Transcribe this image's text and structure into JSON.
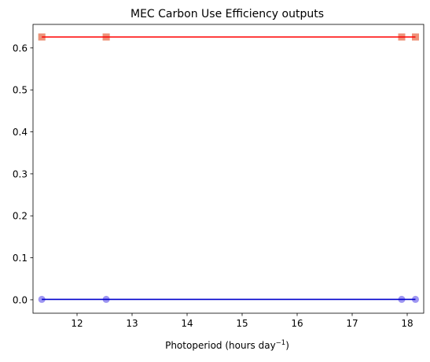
{
  "chart_data": {
    "type": "line",
    "title": "MEC Carbon Use Efficiency outputs",
    "xlabel": "Photoperiod (hours day",
    "xlabel_superscript": "−1",
    "xlabel_suffix": ")",
    "ylabel": "",
    "xlim": [
      11.2,
      18.3
    ],
    "ylim": [
      -0.032,
      0.656
    ],
    "xticks": [
      12,
      13,
      14,
      15,
      16,
      17,
      18
    ],
    "yticks": [
      0.0,
      0.1,
      0.2,
      0.3,
      0.4,
      0.5,
      0.6
    ],
    "xtick_labels": [
      "12",
      "13",
      "14",
      "15",
      "16",
      "17",
      "18"
    ],
    "ytick_labels": [
      "0.0",
      "0.1",
      "0.2",
      "0.3",
      "0.4",
      "0.5",
      "0.6"
    ],
    "grid": false,
    "legend": "none",
    "x": [
      11.36,
      12.53,
      17.9,
      18.15
    ],
    "series": [
      {
        "values": [
          0.626,
          0.626,
          0.626,
          0.626
        ],
        "marker": "square",
        "color": "#90ee90",
        "opacity": 0.85,
        "line": false
      },
      {
        "values": [
          0.626,
          0.626,
          0.626,
          0.626
        ],
        "marker": "square",
        "color": "#fa8072",
        "opacity": 0.85,
        "line": false
      },
      {
        "values": [
          0.626,
          0.626,
          0.626,
          0.626
        ],
        "marker": "none",
        "color": "#ff0000",
        "line": true
      },
      {
        "values": [
          0.001,
          0.001,
          0.001,
          0.001
        ],
        "marker": "circle",
        "color": "#8e85f0",
        "opacity": 0.85,
        "line": false
      },
      {
        "values": [
          0.001,
          0.001,
          0.001,
          0.001
        ],
        "marker": "none",
        "color": "#0000cd",
        "line": true
      }
    ]
  }
}
